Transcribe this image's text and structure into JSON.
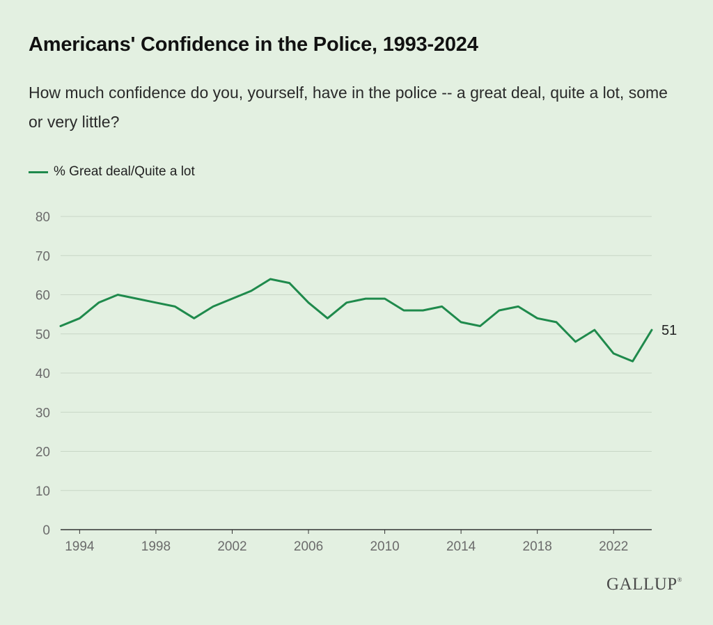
{
  "title": "Americans' Confidence in the Police, 1993-2024",
  "subtitle": "How much confidence do you, yourself, have in the police -- a great deal, quite a lot, some or very little?",
  "brand": "GALLUP",
  "colors": {
    "background": "#e3f0e1",
    "series": "#1f8a4c",
    "grid": "#c8d6c6",
    "axis": "#333333"
  },
  "chart_data": {
    "type": "line",
    "title": "Americans' Confidence in the Police, 1993-2024",
    "xlabel": "",
    "ylabel": "",
    "ylim": [
      0,
      80
    ],
    "yticks": [
      0,
      10,
      20,
      30,
      40,
      50,
      60,
      70,
      80
    ],
    "xlim": [
      1993,
      2024
    ],
    "xticks": [
      1994,
      1998,
      2002,
      2006,
      2010,
      2014,
      2018,
      2022
    ],
    "grid": true,
    "legend": "top-left",
    "end_label": "51",
    "series": [
      {
        "name": "% Great deal/Quite a lot",
        "x": [
          1993,
          1994,
          1995,
          1996,
          1997,
          1998,
          1999,
          2000,
          2001,
          2002,
          2003,
          2004,
          2005,
          2006,
          2007,
          2008,
          2009,
          2010,
          2011,
          2012,
          2013,
          2014,
          2015,
          2016,
          2017,
          2018,
          2019,
          2020,
          2021,
          2022,
          2023,
          2024
        ],
        "values": [
          52,
          54,
          58,
          60,
          59,
          58,
          57,
          54,
          57,
          59,
          61,
          64,
          63,
          58,
          54,
          58,
          59,
          59,
          56,
          56,
          57,
          53,
          52,
          56,
          57,
          54,
          53,
          48,
          51,
          45,
          43,
          51
        ]
      }
    ]
  }
}
